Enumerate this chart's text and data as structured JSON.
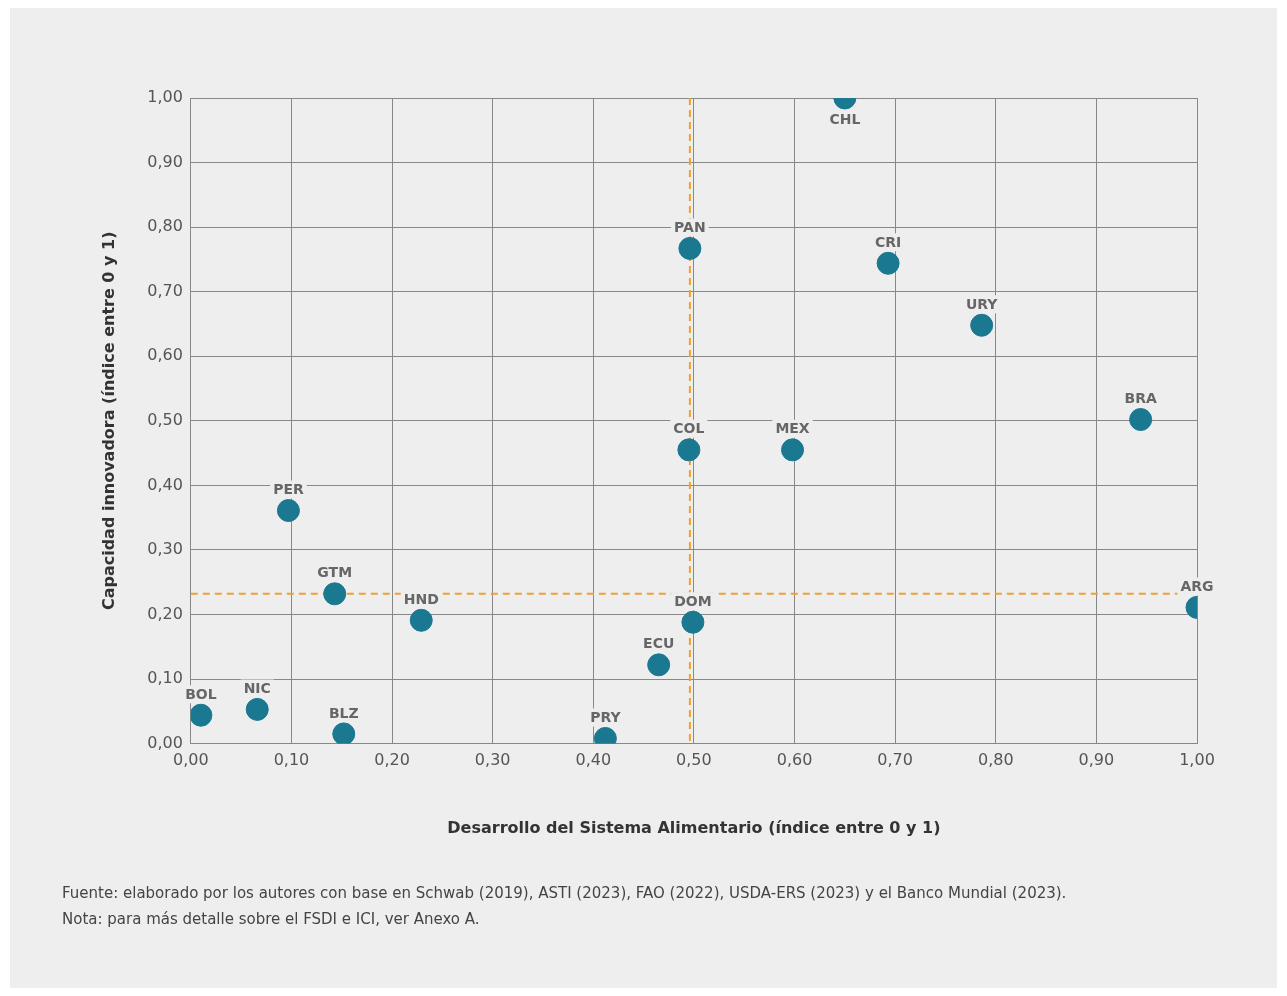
{
  "chart_data": {
    "type": "scatter",
    "xlabel": "Desarrollo del Sistema Alimentario (índice entre 0 y 1)",
    "ylabel": "Capacidad innovadora (índice entre 0 y 1)",
    "x": [
      0.65,
      0.496,
      0.693,
      0.786,
      0.944,
      0.495,
      0.598,
      0.097,
      0.143,
      0.229,
      0.499,
      1.0,
      0.465,
      0.01,
      0.066,
      0.152,
      0.412
    ],
    "series": [
      {
        "color": "#1b7891",
        "values": [
          1.0,
          0.767,
          0.744,
          0.648,
          0.502,
          0.455,
          0.455,
          0.361,
          0.232,
          0.191,
          0.188,
          0.211,
          0.122,
          0.044,
          0.053,
          0.015,
          0.008
        ]
      }
    ],
    "marker": "circle",
    "grid": true,
    "legend": false,
    "xlim": [
      0,
      1
    ],
    "ylim": [
      0,
      1
    ],
    "xticks": [
      {
        "value": 0,
        "label": "0,00"
      },
      {
        "value": 0.1,
        "label": "0,10"
      },
      {
        "value": 0.2,
        "label": "0,20"
      },
      {
        "value": 0.3,
        "label": "0,30"
      },
      {
        "value": 0.4,
        "label": "0,40"
      },
      {
        "value": 0.5,
        "label": "0,50"
      },
      {
        "value": 0.6,
        "label": "0,60"
      },
      {
        "value": 0.7,
        "label": "0,70"
      },
      {
        "value": 0.8,
        "label": "0,80"
      },
      {
        "value": 0.9,
        "label": "0,90"
      },
      {
        "value": 1,
        "label": "1,00"
      }
    ],
    "yticks": [
      {
        "value": 0,
        "label": "0,00"
      },
      {
        "value": 0.1,
        "label": "0,10"
      },
      {
        "value": 0.2,
        "label": "0,20"
      },
      {
        "value": 0.3,
        "label": "0,30"
      },
      {
        "value": 0.4,
        "label": "0,40"
      },
      {
        "value": 0.5,
        "label": "0,50"
      },
      {
        "value": 0.6,
        "label": "0,60"
      },
      {
        "value": 0.7,
        "label": "0,70"
      },
      {
        "value": 0.8,
        "label": "0,80"
      },
      {
        "value": 0.9,
        "label": "0,90"
      },
      {
        "value": 1,
        "label": "1,00"
      }
    ],
    "ref_lines": [
      {
        "axis": "x",
        "value": 0.496,
        "color": "#f0a030",
        "line_style": "dashed"
      },
      {
        "axis": "y",
        "value": 0.232,
        "color": "#f0a030",
        "line_style": "dashed"
      }
    ],
    "annotations": [
      {
        "text": "CHL",
        "x": 0.65,
        "y": 1.0
      },
      {
        "text": "PAN",
        "x": 0.496,
        "y": 0.767
      },
      {
        "text": "CRI",
        "x": 0.693,
        "y": 0.744
      },
      {
        "text": "URY",
        "x": 0.786,
        "y": 0.648
      },
      {
        "text": "BRA",
        "x": 0.944,
        "y": 0.502
      },
      {
        "text": "COL",
        "x": 0.495,
        "y": 0.455
      },
      {
        "text": "MEX",
        "x": 0.598,
        "y": 0.455
      },
      {
        "text": "PER",
        "x": 0.097,
        "y": 0.361
      },
      {
        "text": "GTM",
        "x": 0.143,
        "y": 0.232
      },
      {
        "text": "HND",
        "x": 0.229,
        "y": 0.191
      },
      {
        "text": "DOM",
        "x": 0.499,
        "y": 0.188
      },
      {
        "text": "ARG",
        "x": 1.0,
        "y": 0.211
      },
      {
        "text": "ECU",
        "x": 0.465,
        "y": 0.122
      },
      {
        "text": "BOL",
        "x": 0.01,
        "y": 0.044
      },
      {
        "text": "NIC",
        "x": 0.066,
        "y": 0.053
      },
      {
        "text": "BLZ",
        "x": 0.152,
        "y": 0.015
      },
      {
        "text": "PRY",
        "x": 0.412,
        "y": 0.008
      },
      "Fuente: elaborado por los autores con base en Schwab (2019), ASTI (2023), FAO (2022), USDA-ERS (2023) y el Banco Mundial (2023).",
      "Nota: para más detalle sobre el FSDI e ICI, ver Anexo A."
    ]
  }
}
